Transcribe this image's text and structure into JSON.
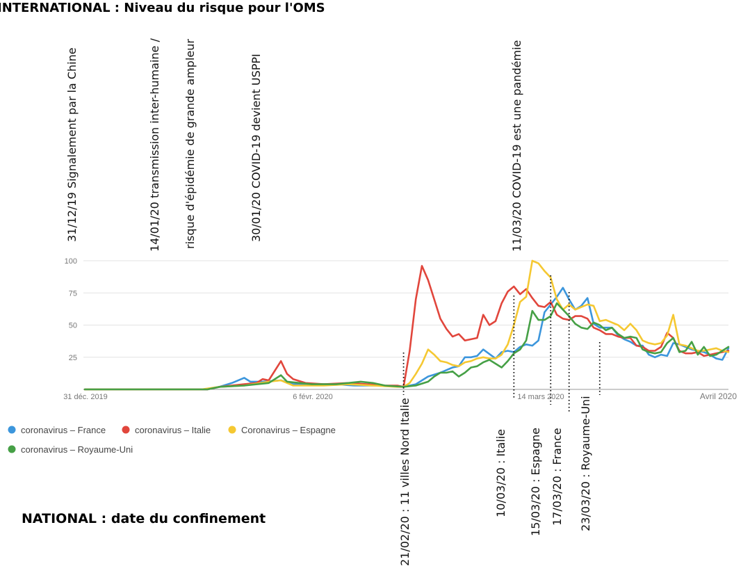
{
  "title_international": "INTERNATIONAL : Niveau du risque pour l'OMS",
  "title_national": "NATIONAL : date  du confinement",
  "chart_data": {
    "type": "line",
    "x_start": "2019-12-31",
    "x_end": "2020-04-02",
    "x_ticks": [
      {
        "date": "2019-12-31",
        "label": "31 déc. 2019"
      },
      {
        "date": "2020-02-06",
        "label": "6 févr. 2020"
      },
      {
        "date": "2020-03-14",
        "label": "14 mars 2020"
      },
      {
        "date": "2020-04-02",
        "label": "Avril 2020"
      }
    ],
    "y_ticks": [
      25,
      50,
      75,
      100
    ],
    "ylim": [
      0,
      100
    ],
    "grid": true,
    "legend_position": "bottom-left",
    "series": [
      {
        "name": "coronavirus – France",
        "color": "#3c96dc",
        "points": [
          [
            "2019-12-31",
            0
          ],
          [
            "2020-01-20",
            0
          ],
          [
            "2020-01-22",
            2
          ],
          [
            "2020-01-24",
            5
          ],
          [
            "2020-01-26",
            9
          ],
          [
            "2020-01-27",
            6
          ],
          [
            "2020-01-29",
            6
          ],
          [
            "2020-02-01",
            7
          ],
          [
            "2020-02-03",
            4
          ],
          [
            "2020-02-06",
            4
          ],
          [
            "2020-02-10",
            4
          ],
          [
            "2020-02-13",
            3
          ],
          [
            "2020-02-17",
            3
          ],
          [
            "2020-02-21",
            2
          ],
          [
            "2020-02-23",
            4
          ],
          [
            "2020-02-25",
            10
          ],
          [
            "2020-02-27",
            13
          ],
          [
            "2020-02-29",
            17
          ],
          [
            "2020-03-01",
            18
          ],
          [
            "2020-03-02",
            25
          ],
          [
            "2020-03-03",
            25
          ],
          [
            "2020-03-04",
            26
          ],
          [
            "2020-03-05",
            31
          ],
          [
            "2020-03-07",
            24
          ],
          [
            "2020-03-08",
            29
          ],
          [
            "2020-03-09",
            30
          ],
          [
            "2020-03-10",
            29
          ],
          [
            "2020-03-11",
            33
          ],
          [
            "2020-03-12",
            35
          ],
          [
            "2020-03-13",
            34
          ],
          [
            "2020-03-14",
            38
          ],
          [
            "2020-03-15",
            60
          ],
          [
            "2020-03-17",
            72
          ],
          [
            "2020-03-18",
            79
          ],
          [
            "2020-03-19",
            70
          ],
          [
            "2020-03-20",
            62
          ],
          [
            "2020-03-21",
            65
          ],
          [
            "2020-03-22",
            71
          ],
          [
            "2020-03-23",
            51
          ],
          [
            "2020-03-24",
            48
          ],
          [
            "2020-03-25",
            48
          ],
          [
            "2020-03-26",
            48
          ],
          [
            "2020-03-27",
            42
          ],
          [
            "2020-03-28",
            39
          ],
          [
            "2020-03-29",
            37
          ],
          [
            "2020-03-30",
            34
          ],
          [
            "2020-03-31",
            34
          ],
          [
            "2020-04-01",
            27
          ],
          [
            "2020-04-02",
            25
          ],
          [
            "2020-04-03",
            27
          ],
          [
            "2020-04-04",
            26
          ],
          [
            "2020-04-05",
            36
          ],
          [
            "2020-04-06",
            35
          ],
          [
            "2020-04-07",
            33
          ],
          [
            "2020-04-08",
            31
          ],
          [
            "2020-04-09",
            30
          ],
          [
            "2020-04-10",
            29
          ],
          [
            "2020-04-11",
            27
          ],
          [
            "2020-04-12",
            24
          ],
          [
            "2020-04-13",
            23
          ],
          [
            "2020-04-14",
            32
          ]
        ]
      },
      {
        "name": "coronavirus – Italie",
        "color": "#e1463c",
        "points": [
          [
            "2019-12-31",
            0
          ],
          [
            "2020-01-20",
            0
          ],
          [
            "2020-01-22",
            2
          ],
          [
            "2020-01-26",
            4
          ],
          [
            "2020-01-28",
            5
          ],
          [
            "2020-01-29",
            8
          ],
          [
            "2020-01-30",
            7
          ],
          [
            "2020-02-01",
            22
          ],
          [
            "2020-02-02",
            12
          ],
          [
            "2020-02-03",
            8
          ],
          [
            "2020-02-05",
            5
          ],
          [
            "2020-02-08",
            4
          ],
          [
            "2020-02-12",
            5
          ],
          [
            "2020-02-15",
            4
          ],
          [
            "2020-02-18",
            3
          ],
          [
            "2020-02-20",
            3
          ],
          [
            "2020-02-21",
            2
          ],
          [
            "2020-02-22",
            30
          ],
          [
            "2020-02-23",
            70
          ],
          [
            "2020-02-24",
            96
          ],
          [
            "2020-02-25",
            85
          ],
          [
            "2020-02-26",
            70
          ],
          [
            "2020-02-27",
            55
          ],
          [
            "2020-02-28",
            47
          ],
          [
            "2020-02-29",
            41
          ],
          [
            "2020-03-01",
            43
          ],
          [
            "2020-03-02",
            38
          ],
          [
            "2020-03-03",
            39
          ],
          [
            "2020-03-04",
            40
          ],
          [
            "2020-03-05",
            58
          ],
          [
            "2020-03-06",
            50
          ],
          [
            "2020-03-07",
            53
          ],
          [
            "2020-03-08",
            67
          ],
          [
            "2020-03-09",
            76
          ],
          [
            "2020-03-10",
            80
          ],
          [
            "2020-03-11",
            74
          ],
          [
            "2020-03-12",
            78
          ],
          [
            "2020-03-13",
            71
          ],
          [
            "2020-03-14",
            65
          ],
          [
            "2020-03-15",
            64
          ],
          [
            "2020-03-16",
            68
          ],
          [
            "2020-03-17",
            58
          ],
          [
            "2020-03-18",
            55
          ],
          [
            "2020-03-19",
            54
          ],
          [
            "2020-03-20",
            57
          ],
          [
            "2020-03-21",
            57
          ],
          [
            "2020-03-22",
            55
          ],
          [
            "2020-03-23",
            48
          ],
          [
            "2020-03-24",
            46
          ],
          [
            "2020-03-25",
            43
          ],
          [
            "2020-03-26",
            43
          ],
          [
            "2020-03-27",
            41
          ],
          [
            "2020-03-28",
            40
          ],
          [
            "2020-03-29",
            40
          ],
          [
            "2020-03-30",
            34
          ],
          [
            "2020-03-31",
            33
          ],
          [
            "2020-04-01",
            30
          ],
          [
            "2020-04-02",
            30
          ],
          [
            "2020-04-03",
            33
          ],
          [
            "2020-04-04",
            44
          ],
          [
            "2020-04-05",
            40
          ],
          [
            "2020-04-06",
            30
          ],
          [
            "2020-04-07",
            28
          ],
          [
            "2020-04-08",
            28
          ],
          [
            "2020-04-09",
            29
          ],
          [
            "2020-04-10",
            26
          ],
          [
            "2020-04-11",
            27
          ],
          [
            "2020-04-12",
            28
          ],
          [
            "2020-04-14",
            30
          ]
        ]
      },
      {
        "name": "Coronavirus – Espagne",
        "color": "#f5c832",
        "points": [
          [
            "2019-12-31",
            0
          ],
          [
            "2020-01-19",
            0
          ],
          [
            "2020-01-22",
            2
          ],
          [
            "2020-01-26",
            3
          ],
          [
            "2020-01-30",
            6
          ],
          [
            "2020-02-01",
            7
          ],
          [
            "2020-02-03",
            3
          ],
          [
            "2020-02-08",
            3
          ],
          [
            "2020-02-12",
            4
          ],
          [
            "2020-02-16",
            3
          ],
          [
            "2020-02-20",
            2
          ],
          [
            "2020-02-21",
            2
          ],
          [
            "2020-02-22",
            5
          ],
          [
            "2020-02-23",
            12
          ],
          [
            "2020-02-24",
            20
          ],
          [
            "2020-02-25",
            31
          ],
          [
            "2020-02-26",
            27
          ],
          [
            "2020-02-27",
            22
          ],
          [
            "2020-02-28",
            21
          ],
          [
            "2020-02-29",
            19
          ],
          [
            "2020-03-01",
            18
          ],
          [
            "2020-03-02",
            21
          ],
          [
            "2020-03-03",
            22
          ],
          [
            "2020-03-04",
            24
          ],
          [
            "2020-03-05",
            25
          ],
          [
            "2020-03-06",
            24
          ],
          [
            "2020-03-07",
            24
          ],
          [
            "2020-03-08",
            27
          ],
          [
            "2020-03-09",
            35
          ],
          [
            "2020-03-10",
            50
          ],
          [
            "2020-03-11",
            68
          ],
          [
            "2020-03-12",
            72
          ],
          [
            "2020-03-13",
            100
          ],
          [
            "2020-03-14",
            98
          ],
          [
            "2020-03-15",
            92
          ],
          [
            "2020-03-16",
            87
          ],
          [
            "2020-03-17",
            70
          ],
          [
            "2020-03-18",
            62
          ],
          [
            "2020-03-19",
            66
          ],
          [
            "2020-03-20",
            62
          ],
          [
            "2020-03-21",
            64
          ],
          [
            "2020-03-22",
            66
          ],
          [
            "2020-03-23",
            65
          ],
          [
            "2020-03-24",
            53
          ],
          [
            "2020-03-25",
            54
          ],
          [
            "2020-03-26",
            52
          ],
          [
            "2020-03-27",
            50
          ],
          [
            "2020-03-28",
            46
          ],
          [
            "2020-03-29",
            51
          ],
          [
            "2020-03-30",
            46
          ],
          [
            "2020-03-31",
            38
          ],
          [
            "2020-04-01",
            36
          ],
          [
            "2020-04-02",
            35
          ],
          [
            "2020-04-03",
            36
          ],
          [
            "2020-04-04",
            42
          ],
          [
            "2020-04-05",
            58
          ],
          [
            "2020-04-06",
            35
          ],
          [
            "2020-04-07",
            34
          ],
          [
            "2020-04-08",
            32
          ],
          [
            "2020-04-09",
            30
          ],
          [
            "2020-04-10",
            30
          ],
          [
            "2020-04-11",
            31
          ],
          [
            "2020-04-12",
            32
          ],
          [
            "2020-04-13",
            30
          ],
          [
            "2020-04-14",
            29
          ]
        ]
      },
      {
        "name": "coronavirus – Royaume-Uni",
        "color": "#46a046",
        "points": [
          [
            "2019-12-31",
            0
          ],
          [
            "2020-01-20",
            0
          ],
          [
            "2020-01-22",
            2
          ],
          [
            "2020-01-26",
            3
          ],
          [
            "2020-01-30",
            5
          ],
          [
            "2020-02-01",
            11
          ],
          [
            "2020-02-02",
            6
          ],
          [
            "2020-02-06",
            4
          ],
          [
            "2020-02-10",
            4
          ],
          [
            "2020-02-12",
            5
          ],
          [
            "2020-02-14",
            6
          ],
          [
            "2020-02-16",
            5
          ],
          [
            "2020-02-18",
            3
          ],
          [
            "2020-02-21",
            2
          ],
          [
            "2020-02-23",
            3
          ],
          [
            "2020-02-25",
            6
          ],
          [
            "2020-02-26",
            10
          ],
          [
            "2020-02-27",
            13
          ],
          [
            "2020-02-28",
            13
          ],
          [
            "2020-02-29",
            14
          ],
          [
            "2020-03-01",
            10
          ],
          [
            "2020-03-02",
            13
          ],
          [
            "2020-03-03",
            17
          ],
          [
            "2020-03-04",
            18
          ],
          [
            "2020-03-05",
            21
          ],
          [
            "2020-03-06",
            23
          ],
          [
            "2020-03-07",
            20
          ],
          [
            "2020-03-08",
            17
          ],
          [
            "2020-03-09",
            22
          ],
          [
            "2020-03-10",
            28
          ],
          [
            "2020-03-11",
            31
          ],
          [
            "2020-03-12",
            38
          ],
          [
            "2020-03-13",
            61
          ],
          [
            "2020-03-14",
            54
          ],
          [
            "2020-03-15",
            54
          ],
          [
            "2020-03-16",
            57
          ],
          [
            "2020-03-17",
            67
          ],
          [
            "2020-03-18",
            62
          ],
          [
            "2020-03-19",
            57
          ],
          [
            "2020-03-20",
            51
          ],
          [
            "2020-03-21",
            48
          ],
          [
            "2020-03-22",
            47
          ],
          [
            "2020-03-23",
            52
          ],
          [
            "2020-03-24",
            50
          ],
          [
            "2020-03-25",
            46
          ],
          [
            "2020-03-26",
            48
          ],
          [
            "2020-03-27",
            43
          ],
          [
            "2020-03-28",
            40
          ],
          [
            "2020-03-29",
            41
          ],
          [
            "2020-03-30",
            40
          ],
          [
            "2020-03-31",
            31
          ],
          [
            "2020-04-01",
            29
          ],
          [
            "2020-04-02",
            28
          ],
          [
            "2020-04-03",
            29
          ],
          [
            "2020-04-04",
            36
          ],
          [
            "2020-04-05",
            40
          ],
          [
            "2020-04-06",
            29
          ],
          [
            "2020-04-07",
            30
          ],
          [
            "2020-04-08",
            37
          ],
          [
            "2020-04-09",
            27
          ],
          [
            "2020-04-10",
            33
          ],
          [
            "2020-04-11",
            26
          ],
          [
            "2020-04-12",
            27
          ],
          [
            "2020-04-14",
            33
          ]
        ]
      }
    ],
    "international_annotations": [
      {
        "lines": [
          "31/12/19 Signalement par la Chine"
        ]
      },
      {
        "lines": [
          "14/01/20 transmission inter-humaine /",
          "risque d'épidémie de grande ampleur"
        ]
      },
      {
        "lines": [
          "30/01/20 COVID-19 devient USPPI"
        ]
      },
      {
        "lines": [
          "11/03/20  COVID-19 est une pandémie"
        ]
      }
    ],
    "national_annotations": [
      {
        "label": "21/02/20 : 11 villes Nord Italie",
        "date": "2020-02-21"
      },
      {
        "label": "10/03/20 : Italie",
        "date": "2020-03-10"
      },
      {
        "label": "15/03/20 : Espagne",
        "date": "2020-03-16"
      },
      {
        "label": "17/03/20 : France",
        "date": "2020-03-19"
      },
      {
        "label": "23/03/20 : Royaume-Uni",
        "date": "2020-03-24"
      }
    ]
  }
}
